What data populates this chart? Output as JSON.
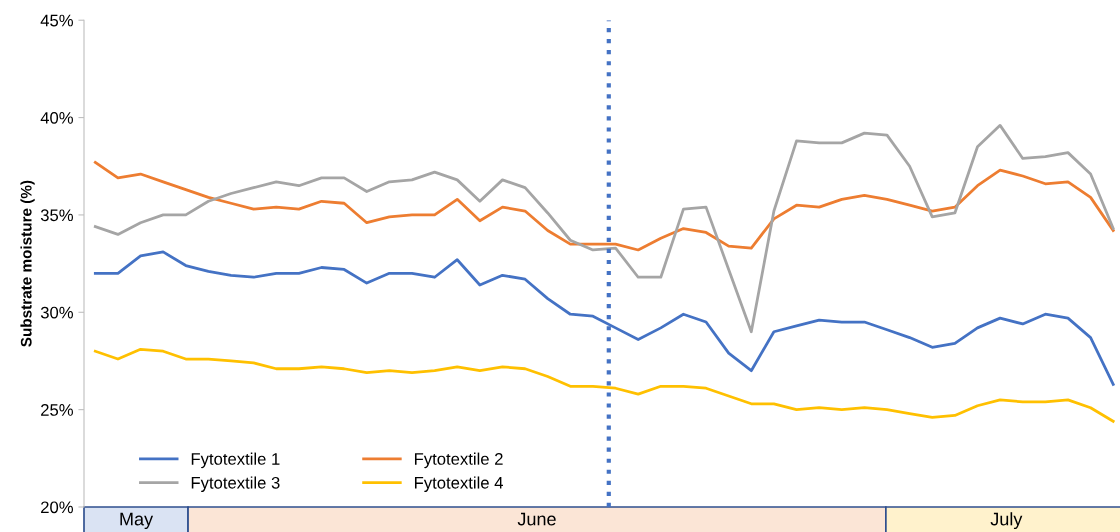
{
  "chart_data": {
    "type": "line",
    "ylabel": "Substrate moisture (%)",
    "categories": [
      null,
      null,
      null,
      null,
      null,
      null,
      null,
      null,
      null,
      null,
      null,
      null,
      null,
      null,
      null,
      null,
      null,
      null,
      null,
      null,
      null,
      null,
      null,
      null,
      null,
      null,
      null,
      null,
      null,
      null,
      null,
      null,
      null,
      null,
      null,
      null,
      null,
      null,
      null,
      null,
      null,
      null,
      null,
      null,
      null,
      null
    ],
    "series": [
      {
        "name": "Fytotextile 1",
        "color": "#4472c4",
        "values": [
          32.0,
          32.0,
          32.9,
          33.1,
          32.4,
          32.1,
          31.9,
          31.8,
          32.0,
          32.0,
          32.3,
          32.2,
          31.5,
          32.0,
          32.0,
          31.8,
          32.7,
          31.4,
          31.9,
          31.7,
          30.7,
          29.9,
          29.8,
          29.2,
          28.6,
          29.2,
          29.9,
          29.5,
          27.9,
          27.0,
          29.0,
          29.3,
          29.6,
          29.5,
          29.5,
          29.1,
          28.7,
          28.2,
          28.4,
          29.2,
          29.7,
          29.4,
          29.9,
          29.7,
          28.7,
          26.3
        ]
      },
      {
        "name": "Fytotextile 2",
        "color": "#ed7d31",
        "values": [
          37.7,
          36.9,
          37.1,
          36.7,
          36.3,
          35.9,
          35.6,
          35.3,
          35.4,
          35.3,
          35.7,
          35.6,
          34.6,
          34.9,
          35.0,
          35.0,
          35.8,
          34.7,
          35.4,
          35.2,
          34.2,
          33.5,
          33.5,
          33.5,
          33.2,
          33.8,
          34.3,
          34.1,
          33.4,
          33.3,
          34.8,
          35.5,
          35.4,
          35.8,
          36.0,
          35.8,
          35.5,
          35.2,
          35.4,
          36.5,
          37.3,
          37.0,
          36.6,
          36.7,
          35.9,
          34.2
        ]
      },
      {
        "name": "Fytotextile 3",
        "color": "#a5a5a5",
        "values": [
          34.4,
          34.0,
          34.6,
          35.0,
          35.0,
          35.7,
          36.1,
          36.4,
          36.7,
          36.5,
          36.9,
          36.9,
          36.2,
          36.7,
          36.8,
          37.2,
          36.8,
          35.7,
          36.8,
          36.4,
          35.1,
          33.7,
          33.2,
          33.3,
          31.8,
          31.8,
          35.3,
          35.4,
          32.2,
          29.0,
          35.2,
          38.8,
          38.7,
          38.7,
          39.2,
          39.1,
          37.5,
          34.9,
          35.1,
          38.5,
          39.6,
          37.9,
          38.0,
          38.2,
          37.1,
          34.3
        ]
      },
      {
        "name": "Fytotextile 4",
        "color": "#ffc000",
        "values": [
          28.0,
          27.6,
          28.1,
          28.0,
          27.6,
          27.6,
          27.5,
          27.4,
          27.1,
          27.1,
          27.2,
          27.1,
          26.9,
          27.0,
          26.9,
          27.0,
          27.2,
          27.0,
          27.2,
          27.1,
          26.7,
          26.2,
          26.2,
          26.1,
          25.8,
          26.2,
          26.2,
          26.1,
          25.7,
          25.3,
          25.3,
          25.0,
          25.1,
          25.0,
          25.1,
          25.0,
          24.8,
          24.6,
          24.7,
          25.2,
          25.5,
          25.4,
          25.4,
          25.5,
          25.1,
          24.4
        ]
      }
    ],
    "ylim": [
      20,
      45
    ],
    "yticks": [
      {
        "value": 20,
        "label": "20%"
      },
      {
        "value": 25,
        "label": "25%"
      },
      {
        "value": 30,
        "label": "30%"
      },
      {
        "value": 35,
        "label": "35%"
      },
      {
        "value": 40,
        "label": "40%"
      },
      {
        "value": 45,
        "label": "45%"
      }
    ],
    "annotations": [
      "May",
      "June",
      "July"
    ],
    "legend": "bottom left",
    "grid": false,
    "marker": "none",
    "line_style": "solid"
  }
}
